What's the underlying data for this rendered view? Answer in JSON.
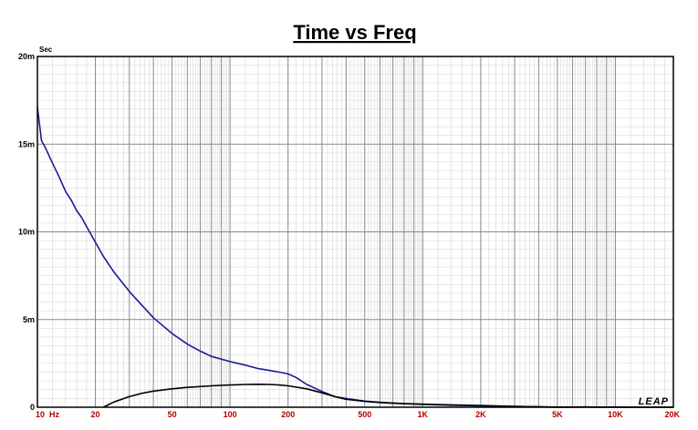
{
  "chart_data": {
    "type": "line",
    "title": "Time vs Freq",
    "ylabel": "Sec",
    "xlabel": "",
    "xscale": "log",
    "xlim": [
      10,
      20000
    ],
    "ylim": [
      0,
      0.02
    ],
    "grid": true,
    "x_ticks": [
      {
        "value": 10,
        "label": "10"
      },
      {
        "value": 20,
        "label": "20"
      },
      {
        "value": 50,
        "label": "50"
      },
      {
        "value": 100,
        "label": "100"
      },
      {
        "value": 200,
        "label": "200"
      },
      {
        "value": 500,
        "label": "500"
      },
      {
        "value": 1000,
        "label": "1K"
      },
      {
        "value": 2000,
        "label": "2K"
      },
      {
        "value": 5000,
        "label": "5K"
      },
      {
        "value": 10000,
        "label": "10K"
      },
      {
        "value": 20000,
        "label": "20K"
      }
    ],
    "x_unit": "Hz",
    "y_ticks": [
      {
        "value": 0,
        "label": "0"
      },
      {
        "value": 0.005,
        "label": "5m"
      },
      {
        "value": 0.01,
        "label": "10m"
      },
      {
        "value": 0.015,
        "label": "15m"
      },
      {
        "value": 0.02,
        "label": "20m"
      }
    ],
    "series": [
      {
        "color": "#1a1a9a",
        "x": [
          10,
          10.5,
          11,
          12,
          13,
          14,
          15,
          16,
          17,
          18,
          20,
          22,
          25,
          30,
          35,
          40,
          50,
          60,
          70,
          80,
          100,
          120,
          140,
          160,
          180,
          200,
          220,
          250,
          300,
          350,
          400,
          500,
          600,
          700,
          800,
          1000,
          1500,
          2000,
          3000,
          4000,
          5000,
          6000,
          7000,
          8000,
          10000,
          12000,
          15000,
          20000
        ],
        "y": [
          0.0171,
          0.0152,
          0.0148,
          0.0139,
          0.0131,
          0.0123,
          0.0118,
          0.0112,
          0.0108,
          0.0103,
          0.0094,
          0.0086,
          0.0077,
          0.0066,
          0.0058,
          0.0051,
          0.0042,
          0.0036,
          0.0032,
          0.0029,
          0.0026,
          0.0024,
          0.0022,
          0.0021,
          0.002,
          0.0019,
          0.0017,
          0.0013,
          0.0009,
          0.0006,
          0.0005,
          0.00035,
          0.00028,
          0.00024,
          0.00021,
          0.00018,
          0.00013,
          0.0001,
          5e-05,
          2e-05,
          0.0,
          0.0,
          2e-05,
          0.0,
          1e-05,
          0.0,
          0.0,
          0.0
        ]
      },
      {
        "color": "#000000",
        "x": [
          22,
          25,
          30,
          35,
          40,
          50,
          60,
          70,
          80,
          100,
          120,
          140,
          160,
          180,
          200,
          250,
          300,
          350,
          400,
          500,
          600,
          700,
          800,
          1000,
          1500,
          2000,
          3000,
          5000,
          10000,
          20000
        ],
        "y": [
          0.0,
          0.0003,
          0.0006,
          0.0008,
          0.00092,
          0.00105,
          0.00113,
          0.00118,
          0.00122,
          0.00127,
          0.0013,
          0.00131,
          0.0013,
          0.00127,
          0.00122,
          0.00105,
          0.00082,
          0.0006,
          0.00045,
          0.00033,
          0.00027,
          0.00023,
          0.0002,
          0.00016,
          0.00011,
          8e-05,
          4e-05,
          1e-05,
          0.0,
          0.0
        ]
      }
    ],
    "logo_text": "LEAP"
  }
}
